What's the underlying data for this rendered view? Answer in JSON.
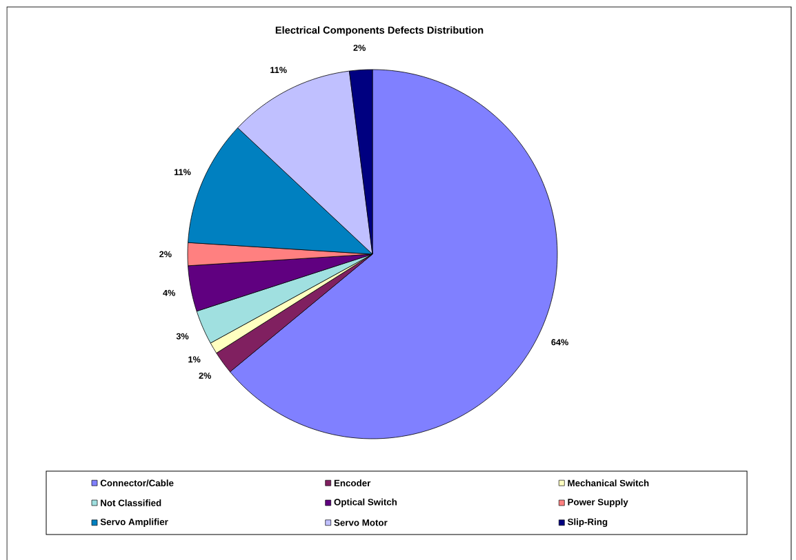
{
  "chart_data": {
    "type": "pie",
    "title": "Electrical Components Defects Distribution",
    "categories": [
      "Connector/Cable",
      "Encoder",
      "Mechanical Switch",
      "Not Classified",
      "Optical Switch",
      "Power Supply",
      "Servo Amplifier",
      "Servo Motor",
      "Slip-Ring"
    ],
    "values": [
      64,
      2,
      1,
      3,
      4,
      2,
      11,
      11,
      2
    ],
    "colors": [
      "#8080ff",
      "#802060",
      "#ffffc0",
      "#a0e0e0",
      "#600080",
      "#ff8080",
      "#0080c0",
      "#c0c0ff",
      "#000080"
    ],
    "value_labels": [
      "64%",
      "2%",
      "1%",
      "3%",
      "4%",
      "2%",
      "11%",
      "11%",
      "2%"
    ],
    "legend": "bottom"
  }
}
